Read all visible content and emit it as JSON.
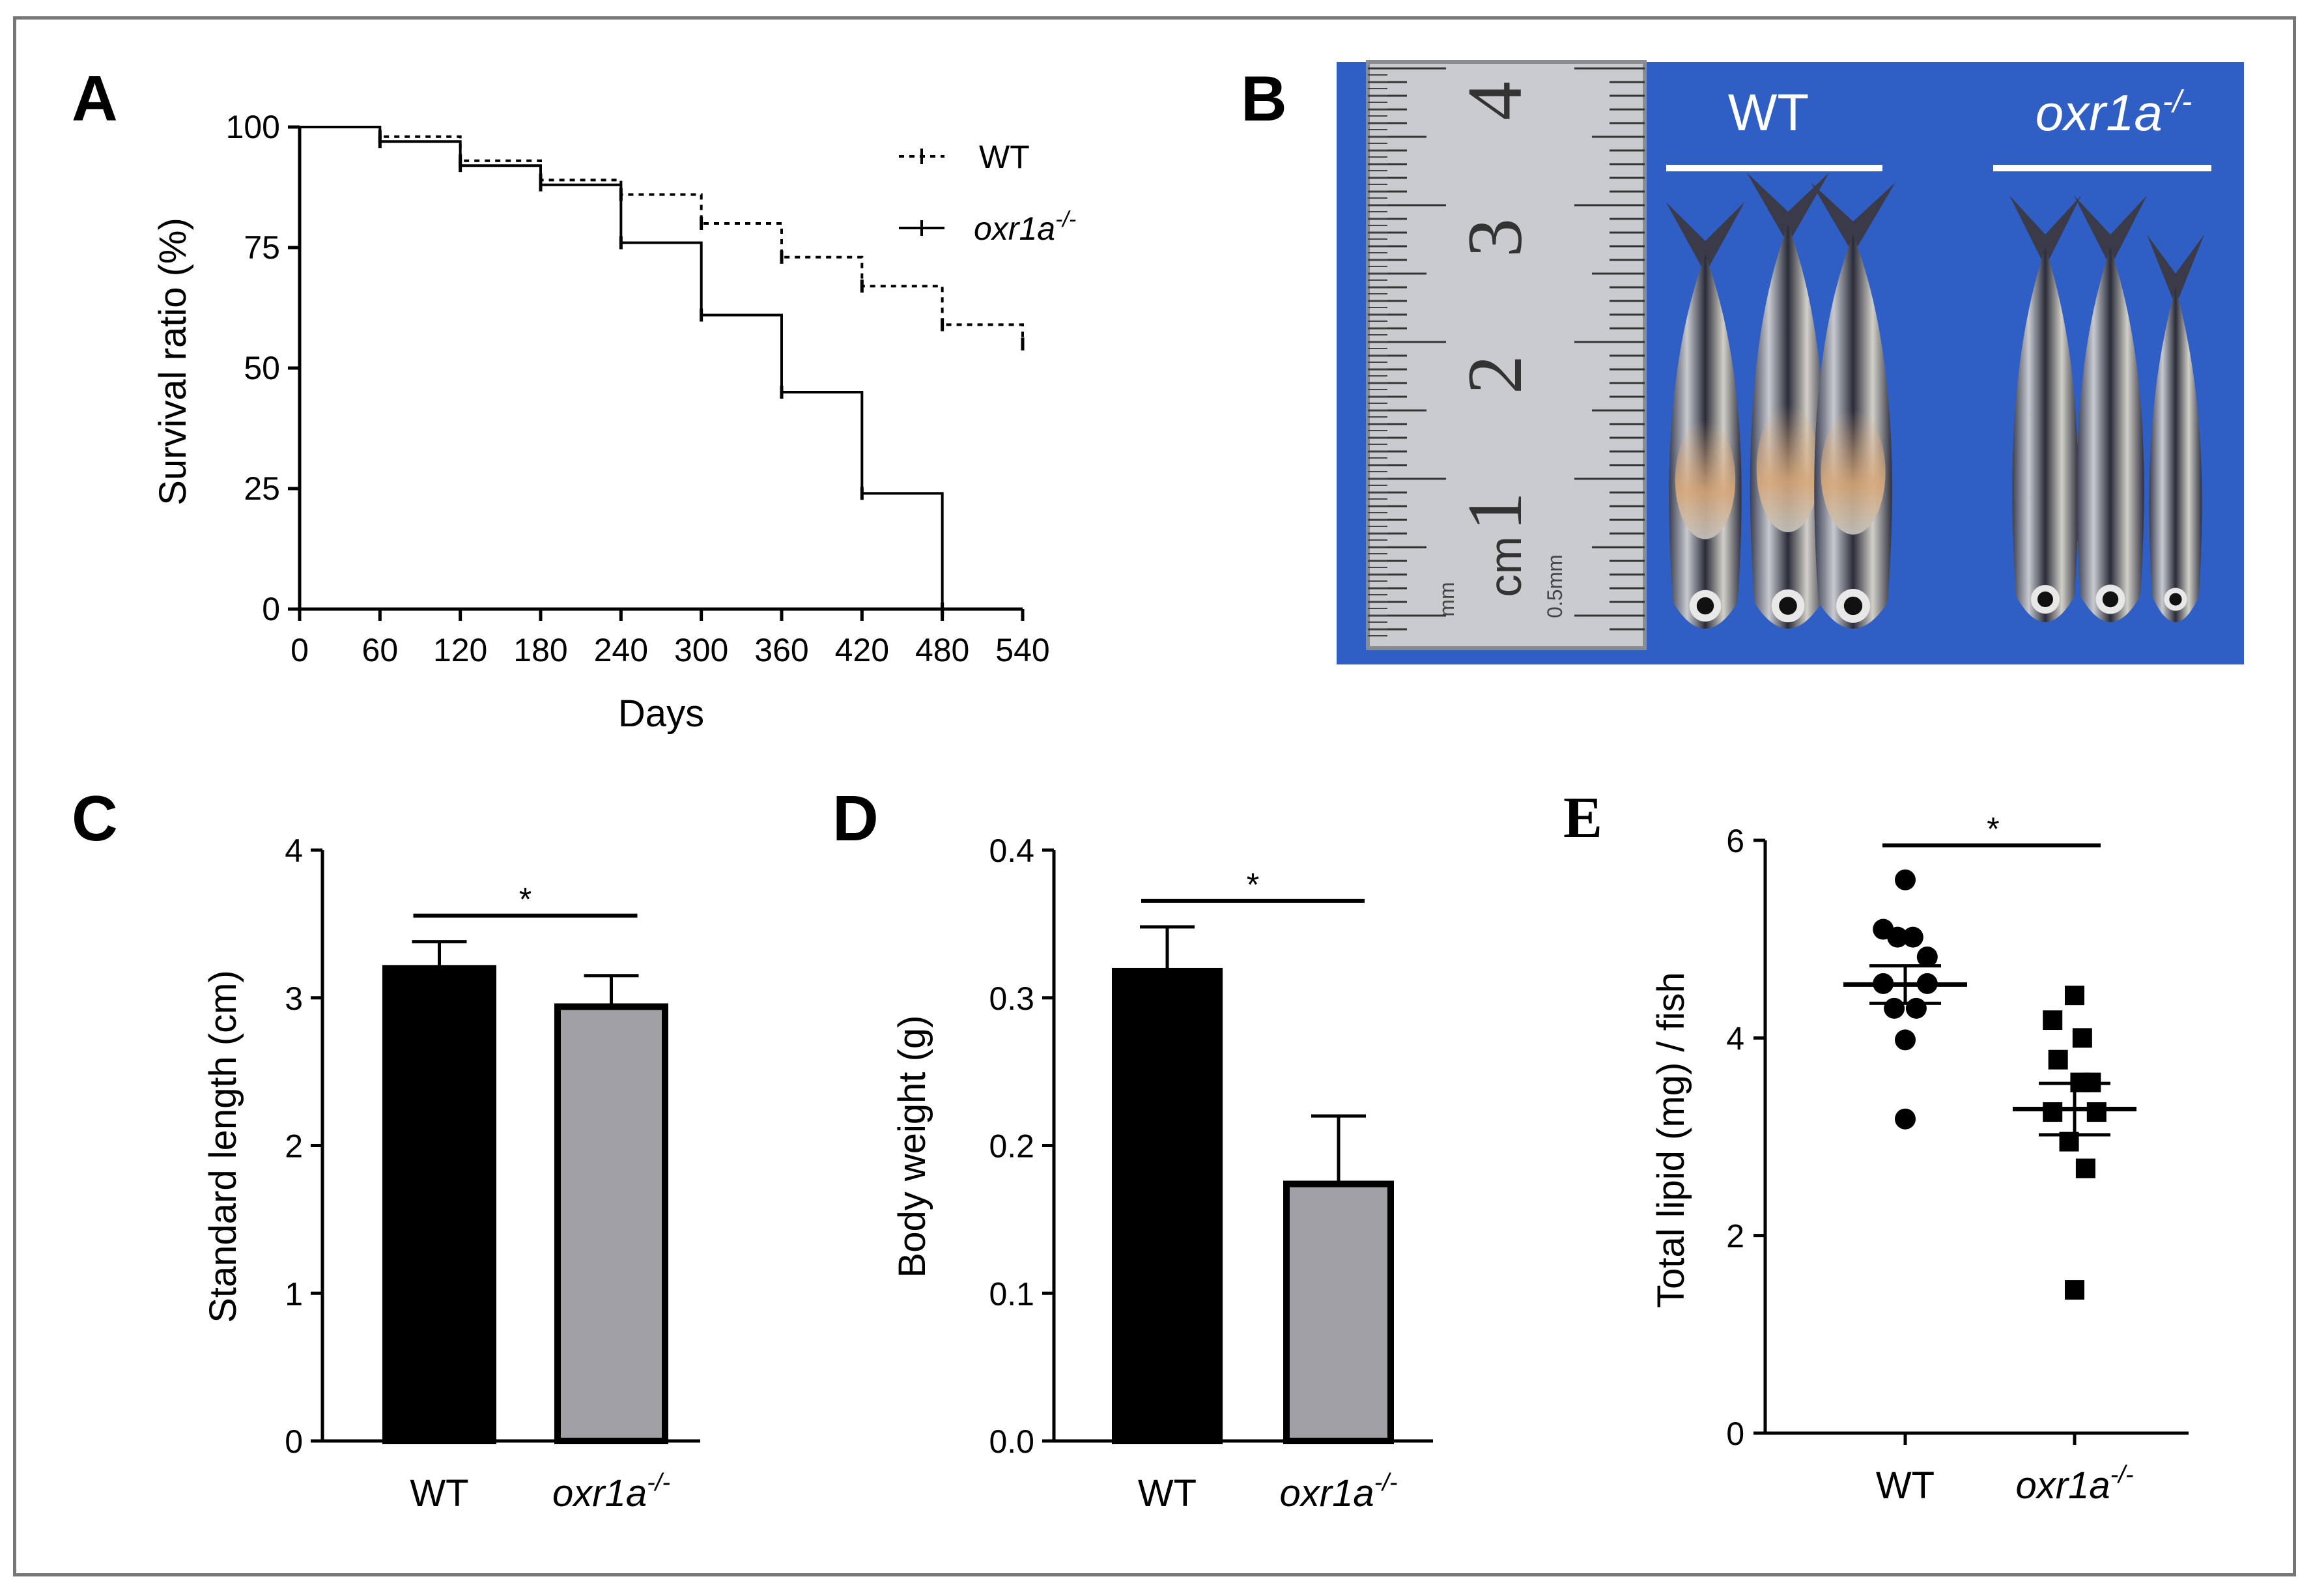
{
  "panels": {
    "A": "A",
    "B": "B",
    "C": "C",
    "D": "D",
    "E": "E"
  },
  "chart_data": [
    {
      "panel": "A",
      "type": "line",
      "subtype": "kaplan-meier",
      "xlabel": "Days",
      "ylabel": "Survival ratio (%)",
      "xlim": [
        0,
        540
      ],
      "ylim": [
        0,
        100
      ],
      "xticks": [
        0,
        60,
        120,
        180,
        240,
        300,
        360,
        420,
        480,
        540
      ],
      "yticks": [
        0,
        25,
        50,
        75,
        100
      ],
      "series": [
        {
          "name": "WT",
          "name_base": "WT",
          "name_sup": "",
          "style": "dotted",
          "x": [
            0,
            60,
            120,
            180,
            240,
            300,
            360,
            420,
            480,
            540
          ],
          "y": [
            100,
            98,
            93,
            89,
            86,
            80,
            73,
            67,
            59,
            55
          ]
        },
        {
          "name": "oxr1a-/-",
          "name_base": "oxr1a",
          "name_sup": "-/-",
          "style": "solid",
          "x": [
            0,
            60,
            120,
            180,
            240,
            300,
            360,
            420,
            480
          ],
          "y": [
            100,
            97,
            92,
            88,
            76,
            61,
            45,
            24,
            0
          ]
        }
      ]
    },
    {
      "panel": "C",
      "type": "bar",
      "ylabel": "Standard length (cm)",
      "ylim": [
        0,
        4
      ],
      "yticks": [
        0,
        1,
        2,
        3,
        4
      ],
      "categories": [
        "WT",
        "oxr1a-/-"
      ],
      "values": [
        3.2,
        2.94
      ],
      "errors": [
        0.18,
        0.21
      ],
      "colors": [
        "#000000",
        "#a0a0a4"
      ],
      "significance": "*"
    },
    {
      "panel": "D",
      "type": "bar",
      "ylabel": "Body weight (g)",
      "ylim": [
        0,
        0.4
      ],
      "yticks": [
        0.0,
        0.1,
        0.2,
        0.3,
        0.4
      ],
      "ytick_labels": [
        "0.0",
        "0.1",
        "0.2",
        "0.3",
        "0.4"
      ],
      "categories": [
        "WT",
        "oxr1a-/-"
      ],
      "values": [
        0.318,
        0.174
      ],
      "errors": [
        0.03,
        0.046
      ],
      "colors": [
        "#000000",
        "#a0a0a4"
      ],
      "significance": "*"
    },
    {
      "panel": "E",
      "type": "scatter",
      "ylabel": "Total lipid (mg) / fish",
      "ylim": [
        0,
        6
      ],
      "yticks": [
        0,
        2,
        4,
        6
      ],
      "categories": [
        "WT",
        "oxr1a-/-"
      ],
      "series": [
        {
          "name": "WT",
          "marker": "circle",
          "points": [
            [
              0,
              5.6
            ],
            [
              -0.2,
              5.1
            ],
            [
              -0.07,
              5.02
            ],
            [
              0.07,
              5.02
            ],
            [
              0.2,
              4.82
            ],
            [
              -0.2,
              4.55
            ],
            [
              0.2,
              4.55
            ],
            [
              -0.1,
              4.3
            ],
            [
              0.1,
              4.3
            ],
            [
              0,
              3.98
            ],
            [
              0,
              3.18
            ]
          ],
          "mean": 4.54,
          "sem": 0.19
        },
        {
          "name": "oxr1a-/-",
          "marker": "square",
          "points": [
            [
              0,
              4.43
            ],
            [
              -0.2,
              4.18
            ],
            [
              0.07,
              4.0
            ],
            [
              -0.15,
              3.78
            ],
            [
              0.15,
              3.55
            ],
            [
              0.05,
              3.55
            ],
            [
              -0.2,
              3.25
            ],
            [
              0.2,
              3.25
            ],
            [
              -0.05,
              2.95
            ],
            [
              0.1,
              2.68
            ],
            [
              0,
              1.45
            ]
          ],
          "mean": 3.28,
          "sem": 0.26
        }
      ],
      "significance": "*"
    }
  ],
  "photo": {
    "label_wt": "WT",
    "label_mut_base": "oxr1a",
    "label_mut_sup": "-/-",
    "ruler_digits": [
      "4",
      "3",
      "2",
      "1"
    ],
    "ruler_unit": "cm",
    "ruler_mm": "mm",
    "ruler_half_mm": "0.5mm"
  },
  "colors": {
    "background": "#ffffff",
    "frame": "#777777",
    "photo_bg": "#2f5fc4",
    "bar_wt": "#000000",
    "bar_mut": "#a0a0a4"
  }
}
